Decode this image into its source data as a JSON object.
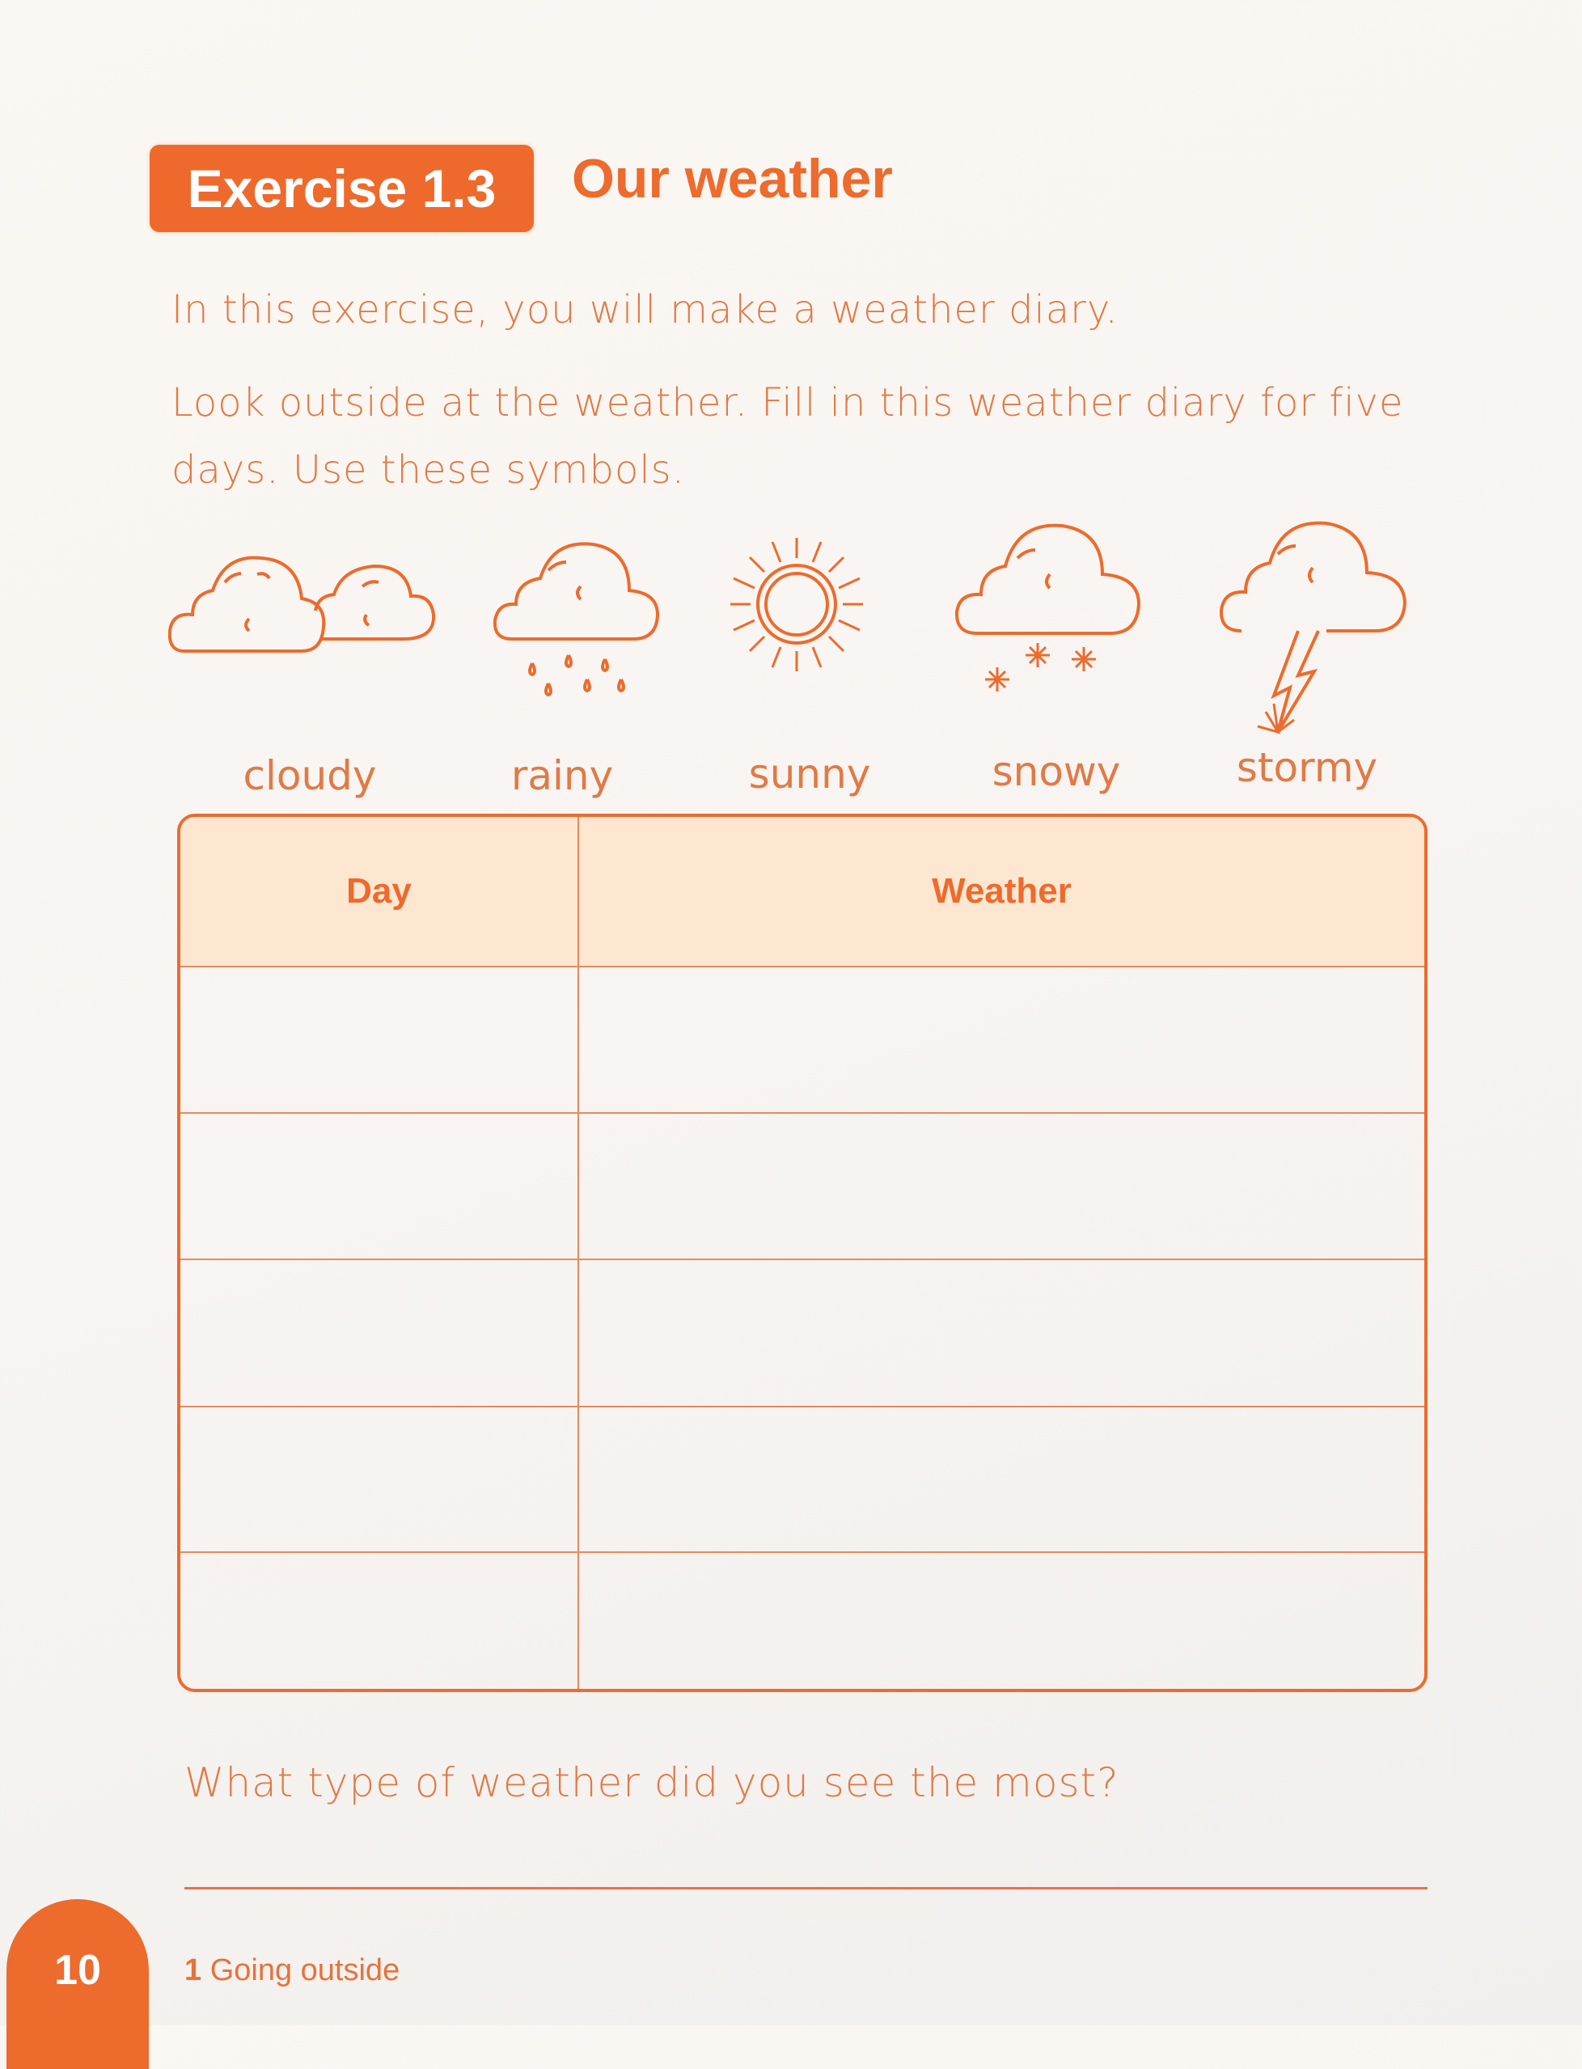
{
  "header": {
    "exercise_badge": "Exercise 1.3",
    "title": "Our weather"
  },
  "instructions": {
    "line1": "In this exercise, you will make a weather diary.",
    "line2": "Look outside at the weather. Fill in this weather diary for five",
    "line3": "days. Use these symbols."
  },
  "symbols": [
    {
      "icon": "cloudy-icon",
      "label": "cloudy"
    },
    {
      "icon": "rainy-icon",
      "label": "rainy"
    },
    {
      "icon": "sunny-icon",
      "label": "sunny"
    },
    {
      "icon": "snowy-icon",
      "label": "snowy"
    },
    {
      "icon": "stormy-icon",
      "label": "stormy"
    }
  ],
  "table": {
    "headers": [
      "Day",
      "Weather"
    ],
    "rows": [
      [
        "",
        ""
      ],
      [
        "",
        ""
      ],
      [
        "",
        ""
      ],
      [
        "",
        ""
      ],
      [
        "",
        ""
      ]
    ]
  },
  "question": "What type of weather did you see the most?",
  "answer": "",
  "footer": {
    "page_number": "10",
    "chapter_number": "1",
    "chapter_title": "Going outside"
  },
  "colors": {
    "accent": "#ec6b2d",
    "header_fill": "#fde7d1",
    "text": "#e07a46"
  }
}
